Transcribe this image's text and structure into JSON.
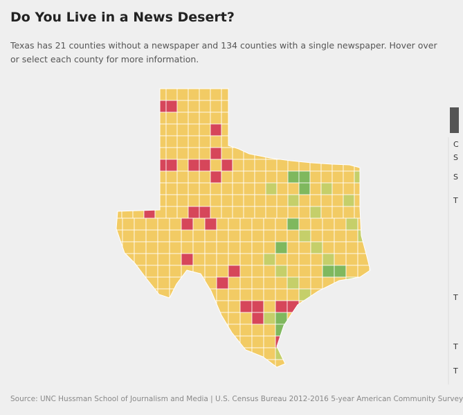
{
  "header": {
    "title": "Do You Live in a News Desert?",
    "description": [
      "Texas has 21 counties without a newspaper and 134 counties with a single newspaper. Hover over",
      "or select each county for more information."
    ]
  },
  "side_panel": {
    "labels": [
      "C",
      "S",
      "S",
      "T",
      "T",
      "T",
      "T"
    ]
  },
  "footer": {
    "source": "Source: UNC Hussman School of Journalism and Media  |  U.S. Census Bureau 2012-2016 5-year American Community Survey"
  }
}
